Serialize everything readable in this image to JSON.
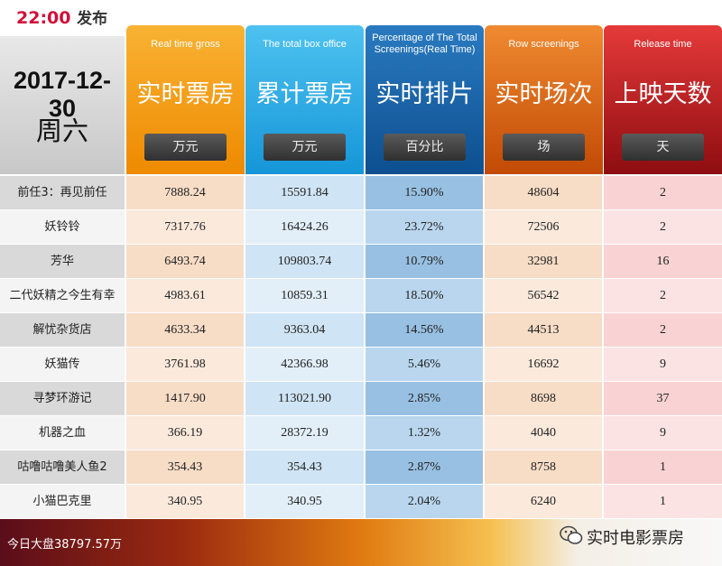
{
  "header": {
    "time": "22:00",
    "publish": "发布",
    "date": "2017-12-30",
    "weekday": "周六"
  },
  "table": {
    "columns": [
      {
        "en": "Real time gross",
        "zh": "实时票房",
        "unit": "万元"
      },
      {
        "en": "The total box office",
        "zh": "累计票房",
        "unit": "万元"
      },
      {
        "en": "Percentage of The Total Screenings(Real Time)",
        "zh": "实时排片",
        "unit": "百分比"
      },
      {
        "en": "Row screenings",
        "zh": "实时场次",
        "unit": "场"
      },
      {
        "en": "Release time",
        "zh": "上映天数",
        "unit": "天"
      }
    ],
    "rows": [
      [
        "前任3：再见前任",
        "7888.24",
        "15591.84",
        "15.90%",
        "48604",
        "2"
      ],
      [
        "妖铃铃",
        "7317.76",
        "16424.26",
        "23.72%",
        "72506",
        "2"
      ],
      [
        "芳华",
        "6493.74",
        "109803.74",
        "10.79%",
        "32981",
        "16"
      ],
      [
        "二代妖精之今生有幸",
        "4983.61",
        "10859.31",
        "18.50%",
        "56542",
        "2"
      ],
      [
        "解忧杂货店",
        "4633.34",
        "9363.04",
        "14.56%",
        "44513",
        "2"
      ],
      [
        "妖猫传",
        "3761.98",
        "42366.98",
        "5.46%",
        "16692",
        "9"
      ],
      [
        "寻梦环游记",
        "1417.90",
        "113021.90",
        "2.85%",
        "8698",
        "37"
      ],
      [
        "机器之血",
        "366.19",
        "28372.19",
        "1.32%",
        "4040",
        "9"
      ],
      [
        "咕噜咕噜美人鱼2",
        "354.43",
        "354.43",
        "2.87%",
        "8758",
        "1"
      ],
      [
        "小猫巴克里",
        "340.95",
        "340.95",
        "2.04%",
        "6240",
        "1"
      ]
    ]
  },
  "footer": {
    "total": "今日大盘38797.57万",
    "brand": "实时电影票房"
  }
}
